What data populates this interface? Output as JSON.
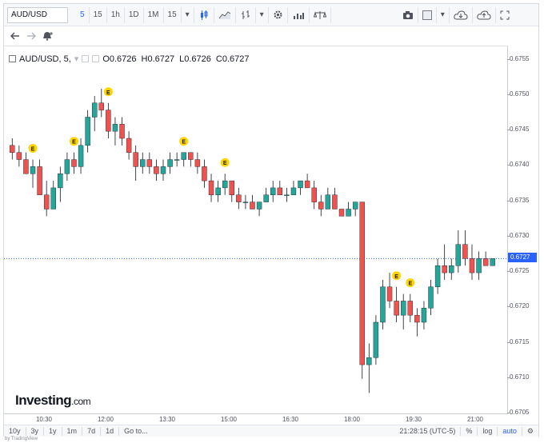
{
  "toolbar": {
    "symbol": "AUD/USD",
    "intervals": [
      "5",
      "15",
      "1h",
      "1D",
      "1M"
    ],
    "active_interval": "5",
    "interval_select": "15"
  },
  "legend": {
    "title": "AUD/USD, 5,",
    "open": "O0.6726",
    "high": "H0.6727",
    "low": "L0.6726",
    "close": "C0.6727"
  },
  "price_axis": {
    "ticks": [
      "0.6755",
      "0.6750",
      "0.6745",
      "0.6740",
      "0.6735",
      "0.6730",
      "0.6725",
      "0.6720",
      "0.6715",
      "0.6710",
      "0.6705"
    ],
    "current_price": "0.6727"
  },
  "time_axis": {
    "ticks": [
      "10:30",
      "12:00",
      "13:30",
      "15:00",
      "16:30",
      "18:00",
      "19:30",
      "21:00"
    ]
  },
  "bottom_bar": {
    "ranges": [
      "10y",
      "3y",
      "1y",
      "1m",
      "7d",
      "1d",
      "Go to..."
    ],
    "clock": "21:28:15 (UTC-5)",
    "percent": "%",
    "log": "log",
    "auto": "auto"
  },
  "logo": {
    "name": "Investing",
    "suffix": ".com"
  },
  "credit": "by TradingView",
  "event_badge": "E",
  "colors": {
    "up": "#26a69a",
    "down": "#ef5350",
    "accent": "#2962ff",
    "event": "#ffd400"
  },
  "chart_data": {
    "type": "candlestick",
    "ylim": [
      0.6705,
      0.6757
    ],
    "x_range": [
      "10:30",
      "21:25"
    ],
    "candles": [
      [
        0.6743,
        0.6744,
        0.6741,
        0.6742
      ],
      [
        0.6742,
        0.6743,
        0.674,
        0.6741
      ],
      [
        0.6741,
        0.6742,
        0.6739,
        0.6739
      ],
      [
        0.6739,
        0.6741,
        0.6737,
        0.674
      ],
      [
        0.674,
        0.6741,
        0.6736,
        0.6736
      ],
      [
        0.6736,
        0.6738,
        0.6733,
        0.6734
      ],
      [
        0.6734,
        0.6738,
        0.6734,
        0.6737
      ],
      [
        0.6737,
        0.674,
        0.6735,
        0.6739
      ],
      [
        0.6739,
        0.6742,
        0.6738,
        0.6741
      ],
      [
        0.6741,
        0.6742,
        0.6739,
        0.674
      ],
      [
        0.674,
        0.6744,
        0.6739,
        0.6743
      ],
      [
        0.6743,
        0.6748,
        0.6742,
        0.6747
      ],
      [
        0.6747,
        0.675,
        0.6745,
        0.6749
      ],
      [
        0.6749,
        0.6751,
        0.6747,
        0.6748
      ],
      [
        0.6748,
        0.6749,
        0.6744,
        0.6745
      ],
      [
        0.6745,
        0.6747,
        0.6743,
        0.6746
      ],
      [
        0.6746,
        0.6747,
        0.6743,
        0.6744
      ],
      [
        0.6744,
        0.6745,
        0.6741,
        0.6742
      ],
      [
        0.6742,
        0.6743,
        0.6738,
        0.674
      ],
      [
        0.674,
        0.6742,
        0.6739,
        0.6741
      ],
      [
        0.6741,
        0.6742,
        0.6739,
        0.674
      ],
      [
        0.674,
        0.6741,
        0.6738,
        0.6739
      ],
      [
        0.6739,
        0.6741,
        0.6738,
        0.674
      ],
      [
        0.674,
        0.6742,
        0.6739,
        0.6741
      ],
      [
        0.6741,
        0.6742,
        0.674,
        0.6741
      ],
      [
        0.6741,
        0.6742,
        0.674,
        0.6742
      ],
      [
        0.6742,
        0.6742,
        0.674,
        0.6741
      ],
      [
        0.6741,
        0.6742,
        0.6739,
        0.674
      ],
      [
        0.674,
        0.6741,
        0.6737,
        0.6738
      ],
      [
        0.6738,
        0.6739,
        0.6735,
        0.6736
      ],
      [
        0.6736,
        0.6738,
        0.6735,
        0.6737
      ],
      [
        0.6737,
        0.6739,
        0.6736,
        0.6738
      ],
      [
        0.6738,
        0.6738,
        0.6735,
        0.6736
      ],
      [
        0.6736,
        0.6737,
        0.6734,
        0.6735
      ],
      [
        0.6735,
        0.6736,
        0.6734,
        0.6735
      ],
      [
        0.6735,
        0.6736,
        0.6734,
        0.6734
      ],
      [
        0.6734,
        0.6735,
        0.6733,
        0.6735
      ],
      [
        0.6735,
        0.6737,
        0.6735,
        0.6736
      ],
      [
        0.6736,
        0.6738,
        0.6735,
        0.6737
      ],
      [
        0.6737,
        0.6738,
        0.6736,
        0.6736
      ],
      [
        0.6736,
        0.6737,
        0.6735,
        0.6736
      ],
      [
        0.6736,
        0.6738,
        0.6736,
        0.6737
      ],
      [
        0.6737,
        0.6738,
        0.6736,
        0.6738
      ],
      [
        0.6738,
        0.6739,
        0.6737,
        0.6737
      ],
      [
        0.6737,
        0.6738,
        0.6734,
        0.6735
      ],
      [
        0.6735,
        0.6736,
        0.6733,
        0.6734
      ],
      [
        0.6734,
        0.6737,
        0.6734,
        0.6736
      ],
      [
        0.6736,
        0.6737,
        0.6734,
        0.6734
      ],
      [
        0.6734,
        0.6734,
        0.6733,
        0.6733
      ],
      [
        0.6733,
        0.6735,
        0.6733,
        0.6734
      ],
      [
        0.6734,
        0.6735,
        0.6733,
        0.6735
      ],
      [
        0.6735,
        0.6735,
        0.671,
        0.6712
      ],
      [
        0.6712,
        0.6715,
        0.6708,
        0.6713
      ],
      [
        0.6713,
        0.6719,
        0.6712,
        0.6718
      ],
      [
        0.6718,
        0.6724,
        0.6717,
        0.6723
      ],
      [
        0.6723,
        0.6725,
        0.672,
        0.6721
      ],
      [
        0.6721,
        0.6723,
        0.6718,
        0.6719
      ],
      [
        0.6719,
        0.6722,
        0.6717,
        0.6721
      ],
      [
        0.6721,
        0.6722,
        0.6718,
        0.6719
      ],
      [
        0.6719,
        0.672,
        0.6716,
        0.6718
      ],
      [
        0.6718,
        0.6721,
        0.6717,
        0.672
      ],
      [
        0.672,
        0.6724,
        0.6719,
        0.6723
      ],
      [
        0.6723,
        0.6727,
        0.6722,
        0.6726
      ],
      [
        0.6726,
        0.6729,
        0.6724,
        0.6725
      ],
      [
        0.6725,
        0.6727,
        0.6724,
        0.6726
      ],
      [
        0.6726,
        0.6731,
        0.6725,
        0.6729
      ],
      [
        0.6729,
        0.6731,
        0.6726,
        0.6727
      ],
      [
        0.6727,
        0.6729,
        0.6724,
        0.6725
      ],
      [
        0.6725,
        0.6728,
        0.6724,
        0.6727
      ],
      [
        0.6727,
        0.6728,
        0.6726,
        0.6726
      ],
      [
        0.6726,
        0.6727,
        0.6726,
        0.6727
      ]
    ],
    "events_at_candle": [
      3,
      9,
      14,
      25,
      31,
      56,
      58
    ]
  }
}
